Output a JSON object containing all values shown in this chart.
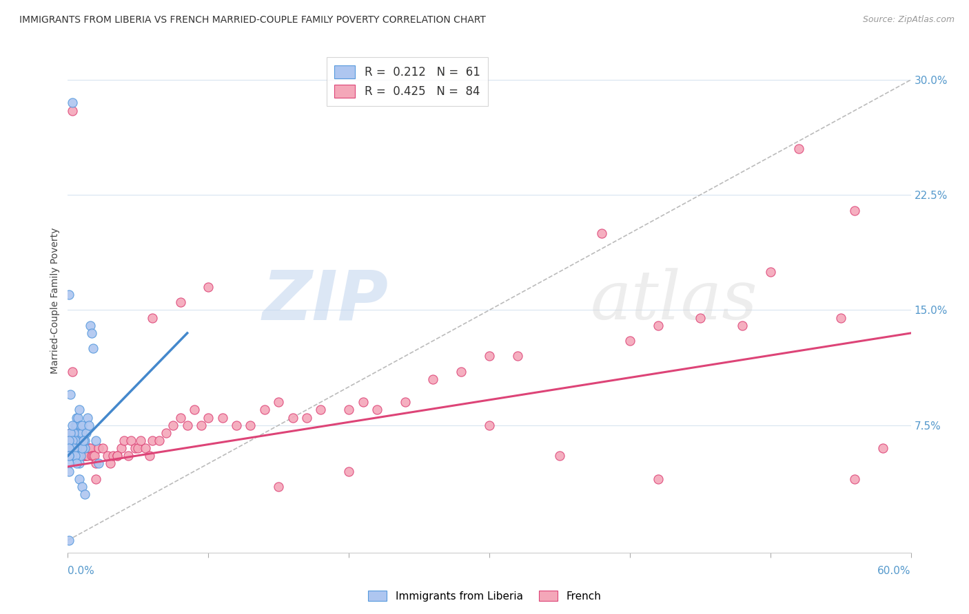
{
  "title": "IMMIGRANTS FROM LIBERIA VS FRENCH MARRIED-COUPLE FAMILY POVERTY CORRELATION CHART",
  "source": "Source: ZipAtlas.com",
  "ylabel": "Married-Couple Family Poverty",
  "xlim": [
    0.0,
    0.6
  ],
  "ylim": [
    -0.008,
    0.32
  ],
  "yticks": [
    0.075,
    0.15,
    0.225,
    0.3
  ],
  "ytick_labels": [
    "7.5%",
    "15.0%",
    "22.5%",
    "30.0%"
  ],
  "legend_blue_label": "R =  0.212   N =  61",
  "legend_pink_label": "R =  0.425   N =  84",
  "legend_blue_color": "#aec6f0",
  "legend_pink_color": "#f4a7b9",
  "scatter_blue_edge": "#5599dd",
  "scatter_pink_edge": "#dd4477",
  "trend_blue_color": "#4488cc",
  "trend_pink_color": "#dd4477",
  "trend_dashed_color": "#bbbbbb",
  "blue_trend_x": [
    0.0,
    0.085
  ],
  "blue_trend_y": [
    0.055,
    0.135
  ],
  "pink_trend_x": [
    0.0,
    0.6
  ],
  "pink_trend_y": [
    0.048,
    0.135
  ],
  "dashed_trend_x": [
    0.0,
    0.6
  ],
  "dashed_trend_y": [
    0.0,
    0.3
  ],
  "blue_scatter_x": [
    0.003,
    0.002,
    0.003,
    0.004,
    0.004,
    0.005,
    0.005,
    0.006,
    0.006,
    0.007,
    0.007,
    0.008,
    0.008,
    0.009,
    0.009,
    0.01,
    0.01,
    0.011,
    0.011,
    0.012,
    0.012,
    0.013,
    0.014,
    0.015,
    0.016,
    0.017,
    0.018,
    0.02,
    0.022,
    0.001,
    0.002,
    0.002,
    0.003,
    0.003,
    0.004,
    0.005,
    0.006,
    0.007,
    0.008,
    0.009,
    0.01,
    0.011,
    0.001,
    0.001,
    0.002,
    0.003,
    0.003,
    0.004,
    0.005,
    0.006,
    0.008,
    0.01,
    0.012,
    0.001,
    0.001,
    0.001,
    0.001,
    0.001,
    0.001,
    0.001,
    0.001
  ],
  "blue_scatter_y": [
    0.285,
    0.095,
    0.07,
    0.065,
    0.07,
    0.075,
    0.065,
    0.075,
    0.08,
    0.08,
    0.07,
    0.07,
    0.085,
    0.075,
    0.065,
    0.07,
    0.075,
    0.065,
    0.06,
    0.06,
    0.065,
    0.07,
    0.08,
    0.075,
    0.14,
    0.135,
    0.125,
    0.065,
    0.05,
    0.055,
    0.06,
    0.055,
    0.06,
    0.065,
    0.07,
    0.065,
    0.06,
    0.055,
    0.05,
    0.055,
    0.06,
    0.065,
    0.065,
    0.06,
    0.07,
    0.075,
    0.065,
    0.06,
    0.055,
    0.05,
    0.04,
    0.035,
    0.03,
    0.16,
    0.065,
    0.06,
    0.055,
    0.05,
    0.045,
    0.055,
    0.0
  ],
  "pink_scatter_x": [
    0.001,
    0.002,
    0.003,
    0.003,
    0.004,
    0.005,
    0.005,
    0.006,
    0.007,
    0.008,
    0.009,
    0.01,
    0.011,
    0.012,
    0.013,
    0.014,
    0.015,
    0.016,
    0.017,
    0.018,
    0.019,
    0.02,
    0.022,
    0.025,
    0.028,
    0.03,
    0.032,
    0.035,
    0.038,
    0.04,
    0.043,
    0.045,
    0.048,
    0.05,
    0.052,
    0.055,
    0.058,
    0.06,
    0.065,
    0.07,
    0.075,
    0.08,
    0.085,
    0.09,
    0.095,
    0.1,
    0.11,
    0.12,
    0.13,
    0.14,
    0.15,
    0.16,
    0.17,
    0.18,
    0.2,
    0.21,
    0.22,
    0.24,
    0.26,
    0.28,
    0.3,
    0.32,
    0.35,
    0.38,
    0.4,
    0.42,
    0.45,
    0.48,
    0.5,
    0.52,
    0.55,
    0.56,
    0.003,
    0.02,
    0.035,
    0.06,
    0.08,
    0.1,
    0.15,
    0.2,
    0.3,
    0.42,
    0.56,
    0.58
  ],
  "pink_scatter_y": [
    0.065,
    0.07,
    0.065,
    0.11,
    0.065,
    0.065,
    0.06,
    0.065,
    0.06,
    0.06,
    0.06,
    0.06,
    0.055,
    0.055,
    0.055,
    0.055,
    0.06,
    0.06,
    0.055,
    0.055,
    0.055,
    0.05,
    0.06,
    0.06,
    0.055,
    0.05,
    0.055,
    0.055,
    0.06,
    0.065,
    0.055,
    0.065,
    0.06,
    0.06,
    0.065,
    0.06,
    0.055,
    0.065,
    0.065,
    0.07,
    0.075,
    0.08,
    0.075,
    0.085,
    0.075,
    0.08,
    0.08,
    0.075,
    0.075,
    0.085,
    0.09,
    0.08,
    0.08,
    0.085,
    0.085,
    0.09,
    0.085,
    0.09,
    0.105,
    0.11,
    0.12,
    0.12,
    0.055,
    0.2,
    0.13,
    0.14,
    0.145,
    0.14,
    0.175,
    0.255,
    0.145,
    0.215,
    0.28,
    0.04,
    0.055,
    0.145,
    0.155,
    0.165,
    0.035,
    0.045,
    0.075,
    0.04,
    0.04,
    0.06
  ]
}
